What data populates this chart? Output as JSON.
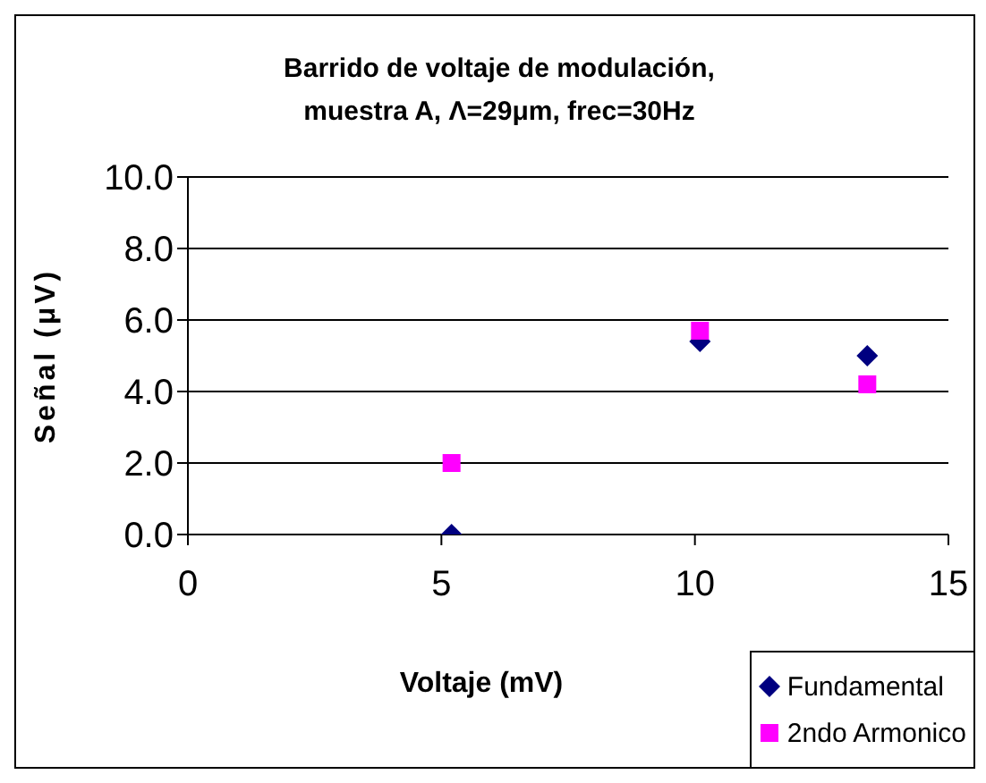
{
  "chart_data": {
    "type": "scatter",
    "title": "Barrido de voltaje de modulación,\nmuestra A, Λ=29μm, frec=30Hz",
    "xlabel": "Voltaje (mV)",
    "ylabel": "Señal (μV)",
    "x": [
      5.2,
      10.1,
      13.4
    ],
    "series": [
      {
        "name": "Fundamental",
        "color": "#000080",
        "values": [
          0.0,
          5.4,
          5.0
        ],
        "marker": "diamond"
      },
      {
        "name": "2ndo Armonico",
        "color": "#ff00ff",
        "values": [
          2.0,
          5.7,
          4.2
        ],
        "marker": "square"
      }
    ],
    "xlim": [
      0,
      15
    ],
    "xticks": [
      0,
      5,
      10,
      15
    ],
    "ylim": [
      0,
      10
    ],
    "yticks": [
      {
        "value": 0,
        "label": "0.0"
      },
      {
        "value": 2,
        "label": "2.0"
      },
      {
        "value": 4,
        "label": "4.0"
      },
      {
        "value": 6,
        "label": "6.0"
      },
      {
        "value": 8,
        "label": "8.0"
      },
      {
        "value": 10,
        "label": "10.0"
      }
    ],
    "grid": "y",
    "legend": "bottom right"
  }
}
